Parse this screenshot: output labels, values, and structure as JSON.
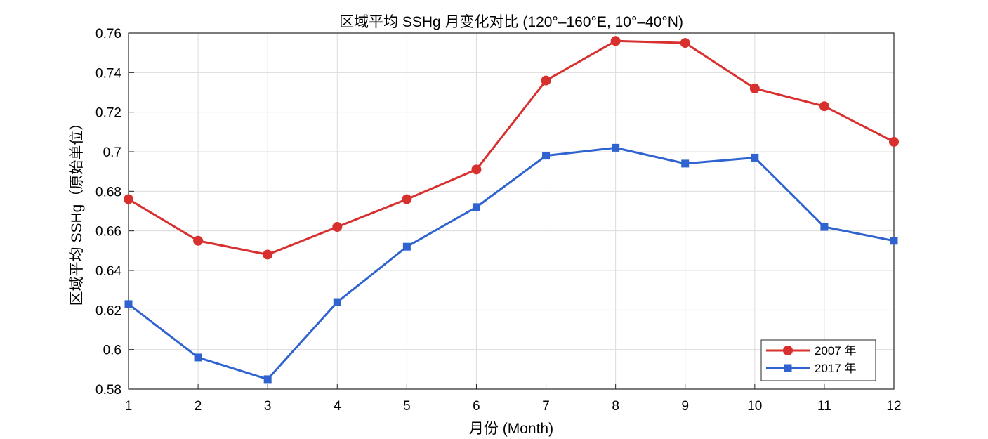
{
  "chart_data": {
    "type": "line",
    "title": "区域平均 SSHg 月变化对比 (120°–160°E, 10°–40°N)",
    "xlabel": "月份 (Month)",
    "ylabel": "区域平均 SSHg（原始单位）",
    "x": [
      1,
      2,
      3,
      4,
      5,
      6,
      7,
      8,
      9,
      10,
      11,
      12
    ],
    "xlim": [
      1,
      12
    ],
    "ylim": [
      0.58,
      0.76
    ],
    "xticks": [
      "1",
      "2",
      "3",
      "4",
      "5",
      "6",
      "7",
      "8",
      "9",
      "10",
      "11",
      "12"
    ],
    "yticks": [
      0.58,
      0.6,
      0.62,
      0.64,
      0.66,
      0.68,
      0.7,
      0.72,
      0.74,
      0.76
    ],
    "ytick_labels": [
      "0.58",
      "0.6",
      "0.62",
      "0.64",
      "0.66",
      "0.68",
      "0.7",
      "0.72",
      "0.74",
      "0.76"
    ],
    "grid": true,
    "legend_position": "bottom-right",
    "series": [
      {
        "name": "2007 年",
        "color": "#d7302f",
        "marker": "circle",
        "values": [
          0.676,
          0.655,
          0.648,
          0.662,
          0.676,
          0.691,
          0.736,
          0.756,
          0.755,
          0.732,
          0.723,
          0.705
        ]
      },
      {
        "name": "2017 年",
        "color": "#2f63cf",
        "marker": "square",
        "values": [
          0.623,
          0.596,
          0.585,
          0.624,
          0.652,
          0.672,
          0.698,
          0.702,
          0.694,
          0.697,
          0.662,
          0.655
        ]
      }
    ]
  }
}
